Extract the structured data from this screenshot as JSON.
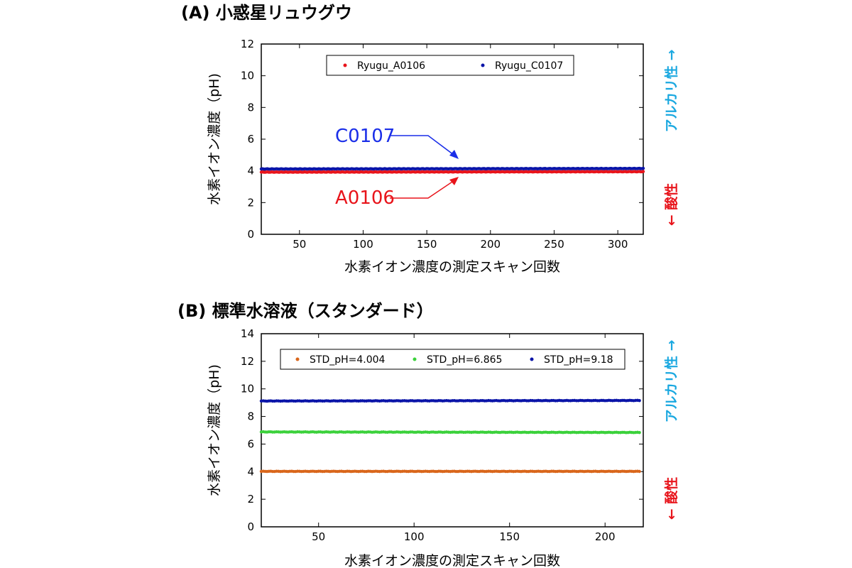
{
  "chart_data": [
    {
      "type": "scatter",
      "title": "(A) 小惑星リュウグウ",
      "xlabel": "水素イオン濃度の測定スキャン回数",
      "ylabel": "水素イオン濃度（pH)",
      "xlim": [
        20,
        320
      ],
      "ylim": [
        0,
        12
      ],
      "xticks": [
        50,
        100,
        150,
        200,
        250,
        300
      ],
      "yticks": [
        0,
        2,
        4,
        6,
        8,
        10,
        12
      ],
      "grid": false,
      "legend_position": "top",
      "series": [
        {
          "name": "Ryugu_A0106",
          "color": "#e8141b",
          "x_start": 20,
          "x_end": 320,
          "step": 1,
          "values_start": 3.92,
          "values_end": 3.95
        },
        {
          "name": "Ryugu_C0107",
          "color": "#0a14a8",
          "x_start": 20,
          "x_end": 320,
          "step": 1,
          "values_start": 4.12,
          "values_end": 4.15
        }
      ],
      "annotations": [
        {
          "text": "C0107",
          "color": "#1a2ee8",
          "target_x": 175,
          "target_y": 4.5
        },
        {
          "text": "A0106",
          "color": "#e8141b",
          "target_x": 175,
          "target_y": 3.7
        }
      ],
      "right_labels": {
        "alkaline": "アルカリ性 →",
        "acidic": "← 酸性",
        "alkaline_color": "#1aa8e0",
        "acidic_color": "#e8141b"
      }
    },
    {
      "type": "scatter",
      "title": "(B) 標準水溶液（スタンダード）",
      "xlabel": "水素イオン濃度の測定スキャン回数",
      "ylabel": "水素イオン濃度（pH)",
      "xlim": [
        20,
        220
      ],
      "ylim": [
        0,
        14
      ],
      "xticks": [
        50,
        100,
        150,
        200
      ],
      "yticks": [
        0,
        2,
        4,
        6,
        8,
        10,
        12,
        14
      ],
      "grid": false,
      "legend_position": "top",
      "series": [
        {
          "name": "STD_pH=4.004",
          "color": "#d9661b",
          "x_start": 20,
          "x_end": 218,
          "step": 1,
          "values_start": 4.02,
          "values_end": 4.02
        },
        {
          "name": "STD_pH=6.865",
          "color": "#3bd13b",
          "x_start": 20,
          "x_end": 218,
          "step": 1,
          "values_start": 6.88,
          "values_end": 6.84
        },
        {
          "name": "STD_pH=9.18",
          "color": "#0a14a8",
          "x_start": 20,
          "x_end": 218,
          "step": 1,
          "values_start": 9.12,
          "values_end": 9.16
        }
      ],
      "right_labels": {
        "alkaline": "アルカリ性 →",
        "acidic": "← 酸性",
        "alkaline_color": "#1aa8e0",
        "acidic_color": "#e8141b"
      }
    }
  ]
}
